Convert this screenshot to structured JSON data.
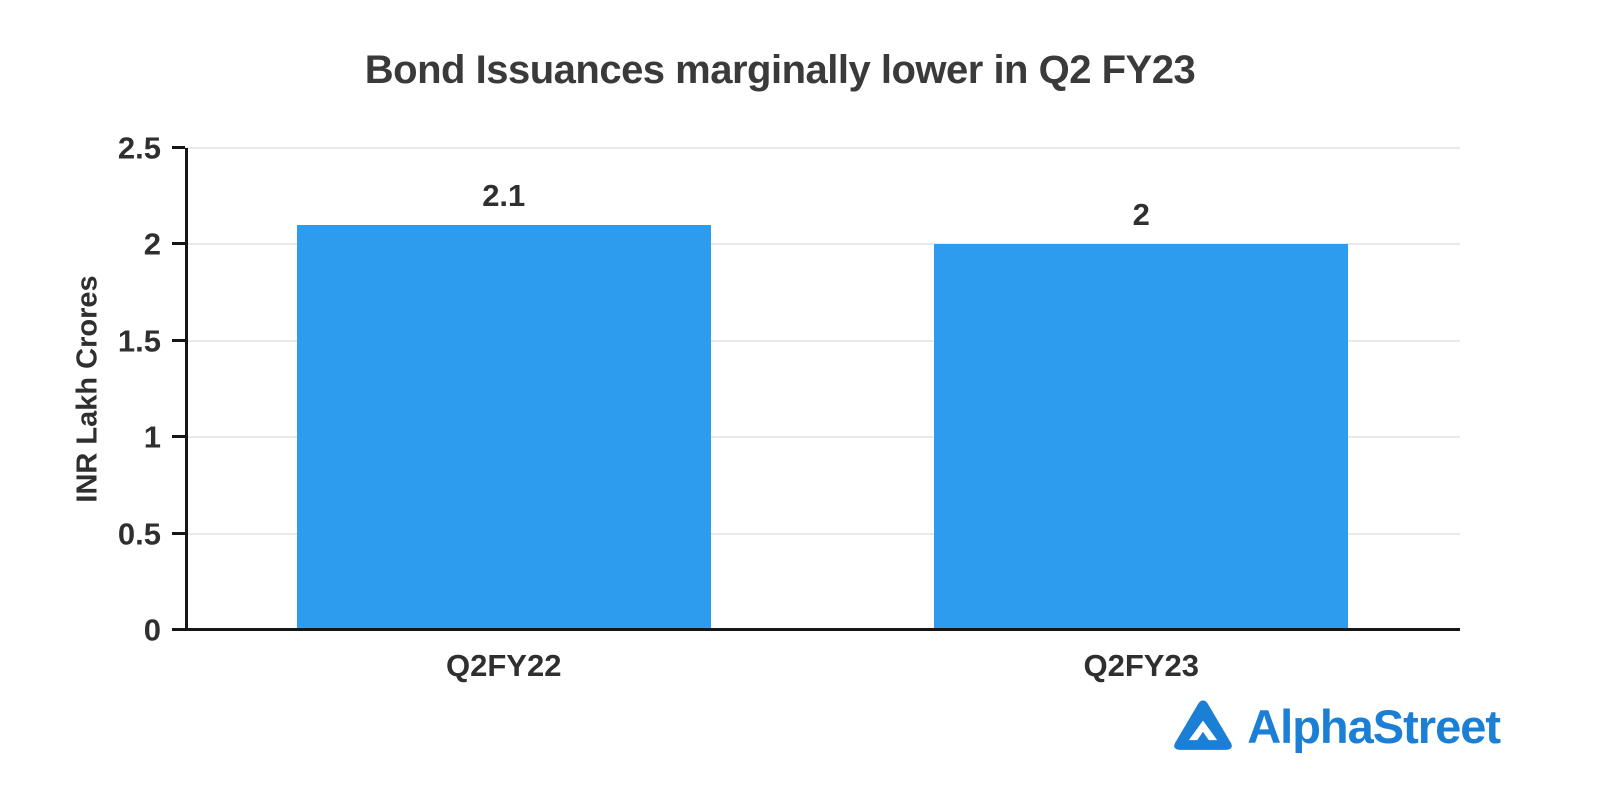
{
  "chart_data": {
    "type": "bar",
    "title": "Bond Issuances marginally lower in Q2 FY23",
    "categories": [
      "Q2FY22",
      "Q2FY23"
    ],
    "values": [
      2.1,
      2
    ],
    "value_labels": [
      "2.1",
      "2"
    ],
    "xlabel": "",
    "ylabel": "INR Lakh Crores",
    "ylim": [
      0,
      2.5
    ],
    "y_ticks": [
      0,
      0.5,
      1,
      1.5,
      2,
      2.5
    ],
    "y_tick_labels": [
      "0",
      "0.5",
      "1",
      "1.5",
      "2",
      "2.5"
    ],
    "grid": "horizontal",
    "legend": "none",
    "bar_color": "#2d9cee"
  },
  "branding": {
    "logo_text": "AlphaStreet",
    "logo_color": "#1b7fd6"
  }
}
